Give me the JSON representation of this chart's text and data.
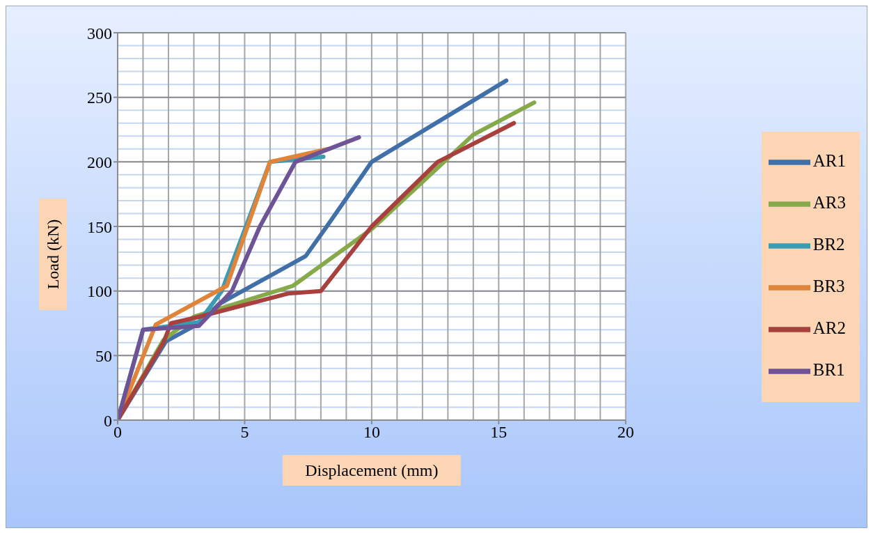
{
  "chart_data": {
    "type": "line",
    "xlabel": "Displacement (mm)",
    "ylabel": "Load (kN)",
    "xlim": [
      0,
      20
    ],
    "xticks": [
      0,
      5,
      10,
      15,
      20
    ],
    "ylim": [
      0,
      300
    ],
    "yticks": [
      0,
      50,
      100,
      150,
      200,
      250,
      300
    ],
    "grid": true,
    "legend": "right",
    "marker": "none",
    "line_style": "solid",
    "series": [
      {
        "name": "AR1",
        "color": "#4170a8",
        "x": [
          0,
          1.9,
          3.2,
          4,
          7.4,
          8.2,
          10,
          15.3
        ],
        "values": [
          0,
          61,
          75,
          90,
          127,
          149,
          200,
          263
        ]
      },
      {
        "name": "AR3",
        "color": "#86a94a",
        "x": [
          0,
          1.8,
          3,
          6.9,
          10,
          14,
          16.4
        ],
        "values": [
          0,
          62,
          80,
          104,
          148,
          221,
          246
        ]
      },
      {
        "name": "BR2",
        "color": "#3b9bb2",
        "x": [
          0,
          1,
          3.2,
          4.1,
          6,
          8.1
        ],
        "values": [
          0,
          70,
          76,
          100,
          200,
          204
        ]
      },
      {
        "name": "BR3",
        "color": "#e0843a",
        "x": [
          0,
          1.5,
          4.3,
          6,
          8.3
        ],
        "values": [
          0,
          74,
          104,
          200,
          210
        ]
      },
      {
        "name": "AR2",
        "color": "#a8403d",
        "x": [
          0,
          1.8,
          2.1,
          3.2,
          6.7,
          8,
          10,
          12.6,
          15.6
        ],
        "values": [
          0,
          60,
          75,
          80,
          98,
          100,
          150,
          200,
          230
        ]
      },
      {
        "name": "BR1",
        "color": "#6e5497",
        "x": [
          0,
          1,
          3.2,
          4.5,
          5.6,
          7,
          9.5
        ],
        "values": [
          0,
          70,
          73,
          100,
          150,
          200,
          219
        ]
      }
    ]
  }
}
